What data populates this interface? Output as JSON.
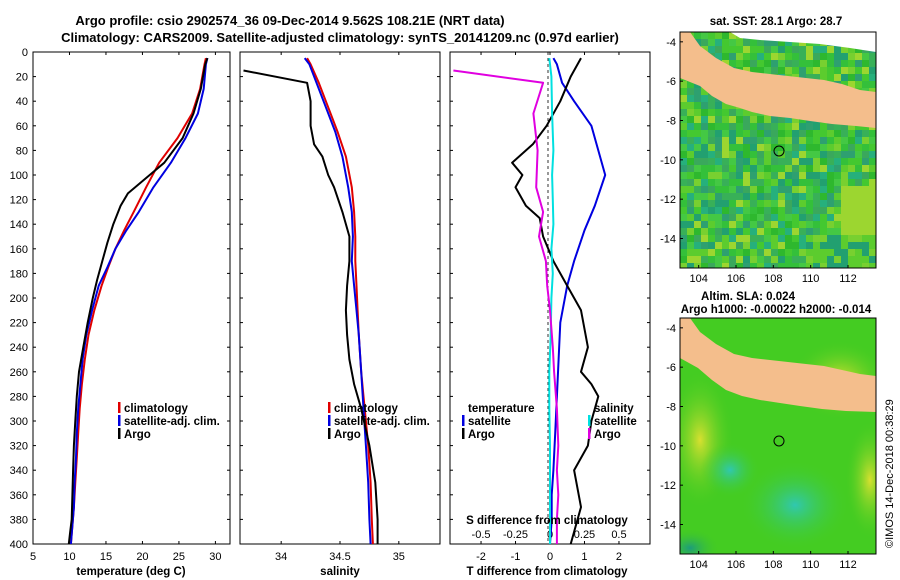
{
  "title": {
    "line1": "Argo profile: csio 2902574_36 09-Dec-2014 9.562S 108.21E (NRT data)",
    "line2": "Climatology: CARS2009. Satellite-adjusted climatology: synTS_20141209.nc (0.97d earlier)"
  },
  "credit": "©IMOS 14-Dec-2018 00:38:29",
  "colors": {
    "climatology": "#e00000",
    "satellite": "#0000e0",
    "argo": "#000000",
    "s_satellite": "#00e0e0",
    "s_argo": "#e000e0",
    "land": "#f4be8c",
    "sst_bg": "#2eb82e",
    "sla_bg": "#44cc22"
  },
  "chart_data": [
    {
      "id": "temperature",
      "type": "line",
      "xlabel": "temperature (deg C)",
      "ylabel": "",
      "xlim": [
        5,
        32
      ],
      "ylim": [
        400,
        0
      ],
      "xticks": [
        5,
        10,
        15,
        20,
        25,
        30
      ],
      "yticks": [
        0,
        20,
        40,
        60,
        80,
        100,
        120,
        140,
        160,
        180,
        200,
        220,
        240,
        260,
        280,
        300,
        320,
        340,
        360,
        380,
        400
      ],
      "legend": [
        "climatology",
        "satellite-adj. clim.",
        "Argo"
      ],
      "series": [
        {
          "name": "climatology",
          "color_key": "climatology",
          "x": [
            28.7,
            28.5,
            27.9,
            26.8,
            24.8,
            22.3,
            20.5,
            18.8,
            17.5,
            16.3,
            15.3,
            14.4,
            13.4,
            12.6,
            12.1,
            11.7,
            11.4,
            11.2,
            11.0,
            10.8,
            10.6,
            10.4,
            10.2
          ],
          "depth": [
            5,
            10,
            30,
            50,
            70,
            90,
            110,
            130,
            145,
            160,
            175,
            190,
            210,
            230,
            250,
            270,
            290,
            310,
            330,
            350,
            370,
            385,
            400
          ]
        },
        {
          "name": "satellite-adj. clim.",
          "color_key": "satellite",
          "x": [
            28.9,
            28.7,
            28.4,
            27.6,
            25.9,
            23.9,
            21.5,
            19.5,
            17.8,
            16.3,
            15.2,
            14.0,
            13.1,
            12.3,
            11.8,
            11.5,
            11.2,
            11.0,
            10.9,
            10.7,
            10.6,
            10.4,
            10.2
          ],
          "depth": [
            5,
            10,
            30,
            50,
            70,
            90,
            110,
            130,
            145,
            160,
            175,
            190,
            210,
            230,
            250,
            270,
            290,
            310,
            330,
            350,
            370,
            385,
            400
          ]
        },
        {
          "name": "Argo",
          "color_key": "argo",
          "x": [
            28.9,
            28.6,
            28.0,
            27.0,
            25.5,
            23.0,
            21.0,
            18.0,
            17.0,
            16.0,
            15.2,
            14.5,
            13.8,
            13.2,
            12.5,
            11.9,
            11.3,
            11.0,
            10.8,
            10.6,
            10.5,
            10.4,
            10.3,
            10.1,
            9.9
          ],
          "depth": [
            5,
            10,
            30,
            50,
            70,
            90,
            100,
            115,
            125,
            140,
            155,
            170,
            185,
            200,
            220,
            240,
            260,
            280,
            300,
            320,
            340,
            360,
            380,
            390,
            400
          ]
        }
      ]
    },
    {
      "id": "salinity",
      "type": "line",
      "xlabel": "salinity",
      "xlim": [
        33.65,
        35.35
      ],
      "ylim": [
        400,
        0
      ],
      "xticks": [
        34,
        34.5,
        35
      ],
      "legend": [
        "climatology",
        "satellite-adj. clim.",
        "Argo"
      ],
      "series": [
        {
          "name": "climatology",
          "color_key": "climatology",
          "x": [
            34.22,
            34.25,
            34.32,
            34.4,
            34.48,
            34.55,
            34.6,
            34.62,
            34.63,
            34.63,
            34.64,
            34.65,
            34.66,
            34.68,
            34.7,
            34.72,
            34.74,
            34.76,
            34.77,
            34.78
          ],
          "depth": [
            5,
            10,
            25,
            45,
            65,
            85,
            110,
            130,
            150,
            170,
            190,
            210,
            230,
            260,
            280,
            300,
            320,
            350,
            380,
            400
          ]
        },
        {
          "name": "satellite-adj. clim.",
          "color_key": "satellite",
          "x": [
            34.2,
            34.24,
            34.3,
            34.38,
            34.46,
            34.52,
            34.57,
            34.6,
            34.61,
            34.6,
            34.62,
            34.64,
            34.66,
            34.68,
            34.7,
            34.72,
            34.74,
            34.75,
            34.76
          ],
          "depth": [
            5,
            10,
            25,
            45,
            65,
            85,
            110,
            130,
            150,
            170,
            190,
            210,
            230,
            260,
            290,
            320,
            350,
            380,
            400
          ]
        },
        {
          "name": "Argo",
          "color_key": "argo",
          "x": [
            33.68,
            34.22,
            34.25,
            34.25,
            34.28,
            34.35,
            34.4,
            34.45,
            34.52,
            34.58,
            34.58,
            34.56,
            34.55,
            34.56,
            34.58,
            34.62,
            34.68,
            34.75,
            34.8,
            34.82,
            34.82
          ],
          "depth": [
            15,
            25,
            40,
            60,
            75,
            85,
            100,
            110,
            130,
            150,
            170,
            190,
            210,
            230,
            250,
            270,
            290,
            320,
            350,
            380,
            400
          ]
        }
      ]
    },
    {
      "id": "differences",
      "type": "line",
      "xlabel": "T difference from climatology",
      "xlabel_top": "S difference from climatology",
      "xlim": [
        -2.9,
        2.9
      ],
      "xlim_top": [
        -0.725,
        0.725
      ],
      "ylim": [
        400,
        0
      ],
      "xticks": [
        -2,
        -1,
        0,
        1,
        2
      ],
      "xticks_top": [
        -0.5,
        -0.25,
        0,
        0.25,
        0.5
      ],
      "legend_temperature": [
        "temperature",
        "satellite",
        "Argo"
      ],
      "legend_salinity": [
        "salinity",
        "satellite",
        "Argo"
      ],
      "series": [
        {
          "name": "temperature satellite",
          "color_key": "satellite",
          "scale": "T",
          "x": [
            0.1,
            0.2,
            0.35,
            0.7,
            1.2,
            1.4,
            1.6,
            1.3,
            1.0,
            0.7,
            0.5,
            0.3,
            0.25,
            0.2,
            0.15,
            0.1,
            0.05,
            0.05,
            0.0
          ],
          "depth": [
            5,
            10,
            25,
            40,
            60,
            80,
            100,
            125,
            145,
            170,
            190,
            220,
            250,
            280,
            310,
            340,
            360,
            380,
            400
          ]
        },
        {
          "name": "temperature Argo",
          "color_key": "argo",
          "scale": "T",
          "x": [
            0.9,
            0.6,
            0.3,
            -0.1,
            -0.5,
            -1.1,
            -0.8,
            -1.0,
            -0.7,
            -0.3,
            -0.2,
            0.1,
            0.5,
            0.9,
            1.1,
            0.9,
            1.2,
            1.4,
            1.2,
            1.1,
            0.7,
            0.9,
            0.6
          ],
          "depth": [
            5,
            20,
            40,
            60,
            75,
            90,
            100,
            110,
            125,
            135,
            150,
            170,
            190,
            210,
            240,
            260,
            270,
            280,
            300,
            320,
            340,
            370,
            400
          ]
        },
        {
          "name": "salinity satellite",
          "color_key": "s_satellite",
          "scale": "S",
          "x": [
            -0.005,
            0.01,
            0.015,
            0.025,
            0.015,
            0.02,
            0.025,
            0.01,
            0.02,
            0.01,
            0.005,
            -0.005,
            -0.005,
            0.0,
            0.0,
            0.0
          ],
          "depth": [
            5,
            20,
            50,
            80,
            100,
            120,
            140,
            160,
            180,
            200,
            230,
            260,
            290,
            320,
            360,
            400
          ]
        },
        {
          "name": "salinity Argo",
          "color_key": "s_argo",
          "scale": "S",
          "x": [
            -0.7,
            -0.05,
            -0.12,
            -0.09,
            -0.1,
            -0.05,
            -0.08,
            -0.03,
            -0.02,
            0.0,
            0.02,
            0.03,
            0.05,
            0.06,
            0.05,
            0.06,
            0.05,
            0.05
          ],
          "depth": [
            15,
            25,
            50,
            80,
            110,
            130,
            150,
            170,
            190,
            210,
            240,
            260,
            290,
            320,
            340,
            360,
            380,
            400
          ]
        }
      ]
    },
    {
      "id": "sst_map",
      "type": "heatmap",
      "title": "sat. SST: 28.1 Argo: 28.7",
      "xlim": [
        103,
        113.5
      ],
      "ylim": [
        -15.5,
        -3.5
      ],
      "xticks": [
        104,
        106,
        108,
        110,
        112
      ],
      "yticks": [
        -4,
        -6,
        -8,
        -10,
        -12,
        -14
      ],
      "marker": {
        "lon": 108.21,
        "lat": -9.562
      }
    },
    {
      "id": "sla_map",
      "type": "heatmap",
      "title": "Altim. SLA: 0.024",
      "subtitle": "Argo h1000: -0.00022 h2000: -0.014",
      "xlim": [
        103,
        113.5
      ],
      "ylim": [
        -15.5,
        -3.5
      ],
      "xticks": [
        104,
        106,
        108,
        110,
        112
      ],
      "yticks": [
        -4,
        -6,
        -8,
        -10,
        -12,
        -14
      ],
      "marker": {
        "lon": 108.21,
        "lat": -9.562
      }
    }
  ]
}
